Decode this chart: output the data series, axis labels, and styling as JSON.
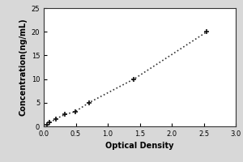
{
  "x_data": [
    0.047,
    0.094,
    0.188,
    0.329,
    0.493,
    0.706,
    1.41,
    2.55
  ],
  "y_data": [
    0.39,
    0.78,
    1.56,
    2.5,
    3.125,
    5.0,
    10.0,
    20.0
  ],
  "xlabel": "Optical Density",
  "ylabel": "Concentration(ng/mL)",
  "xlim": [
    0,
    3
  ],
  "ylim": [
    0,
    25
  ],
  "xticks": [
    0,
    0.5,
    1,
    1.5,
    2,
    2.5,
    3
  ],
  "yticks": [
    0,
    5,
    10,
    15,
    20,
    25
  ],
  "line_color": "#333333",
  "marker_color": "#111111",
  "plot_bg_color": "#ffffff",
  "fig_bg_color": "#d8d8d8",
  "line_style": "dotted",
  "marker_style": "+",
  "marker_size": 5,
  "marker_linewidth": 1.2,
  "line_width": 1.2,
  "tick_fontsize": 6,
  "label_fontsize": 7
}
